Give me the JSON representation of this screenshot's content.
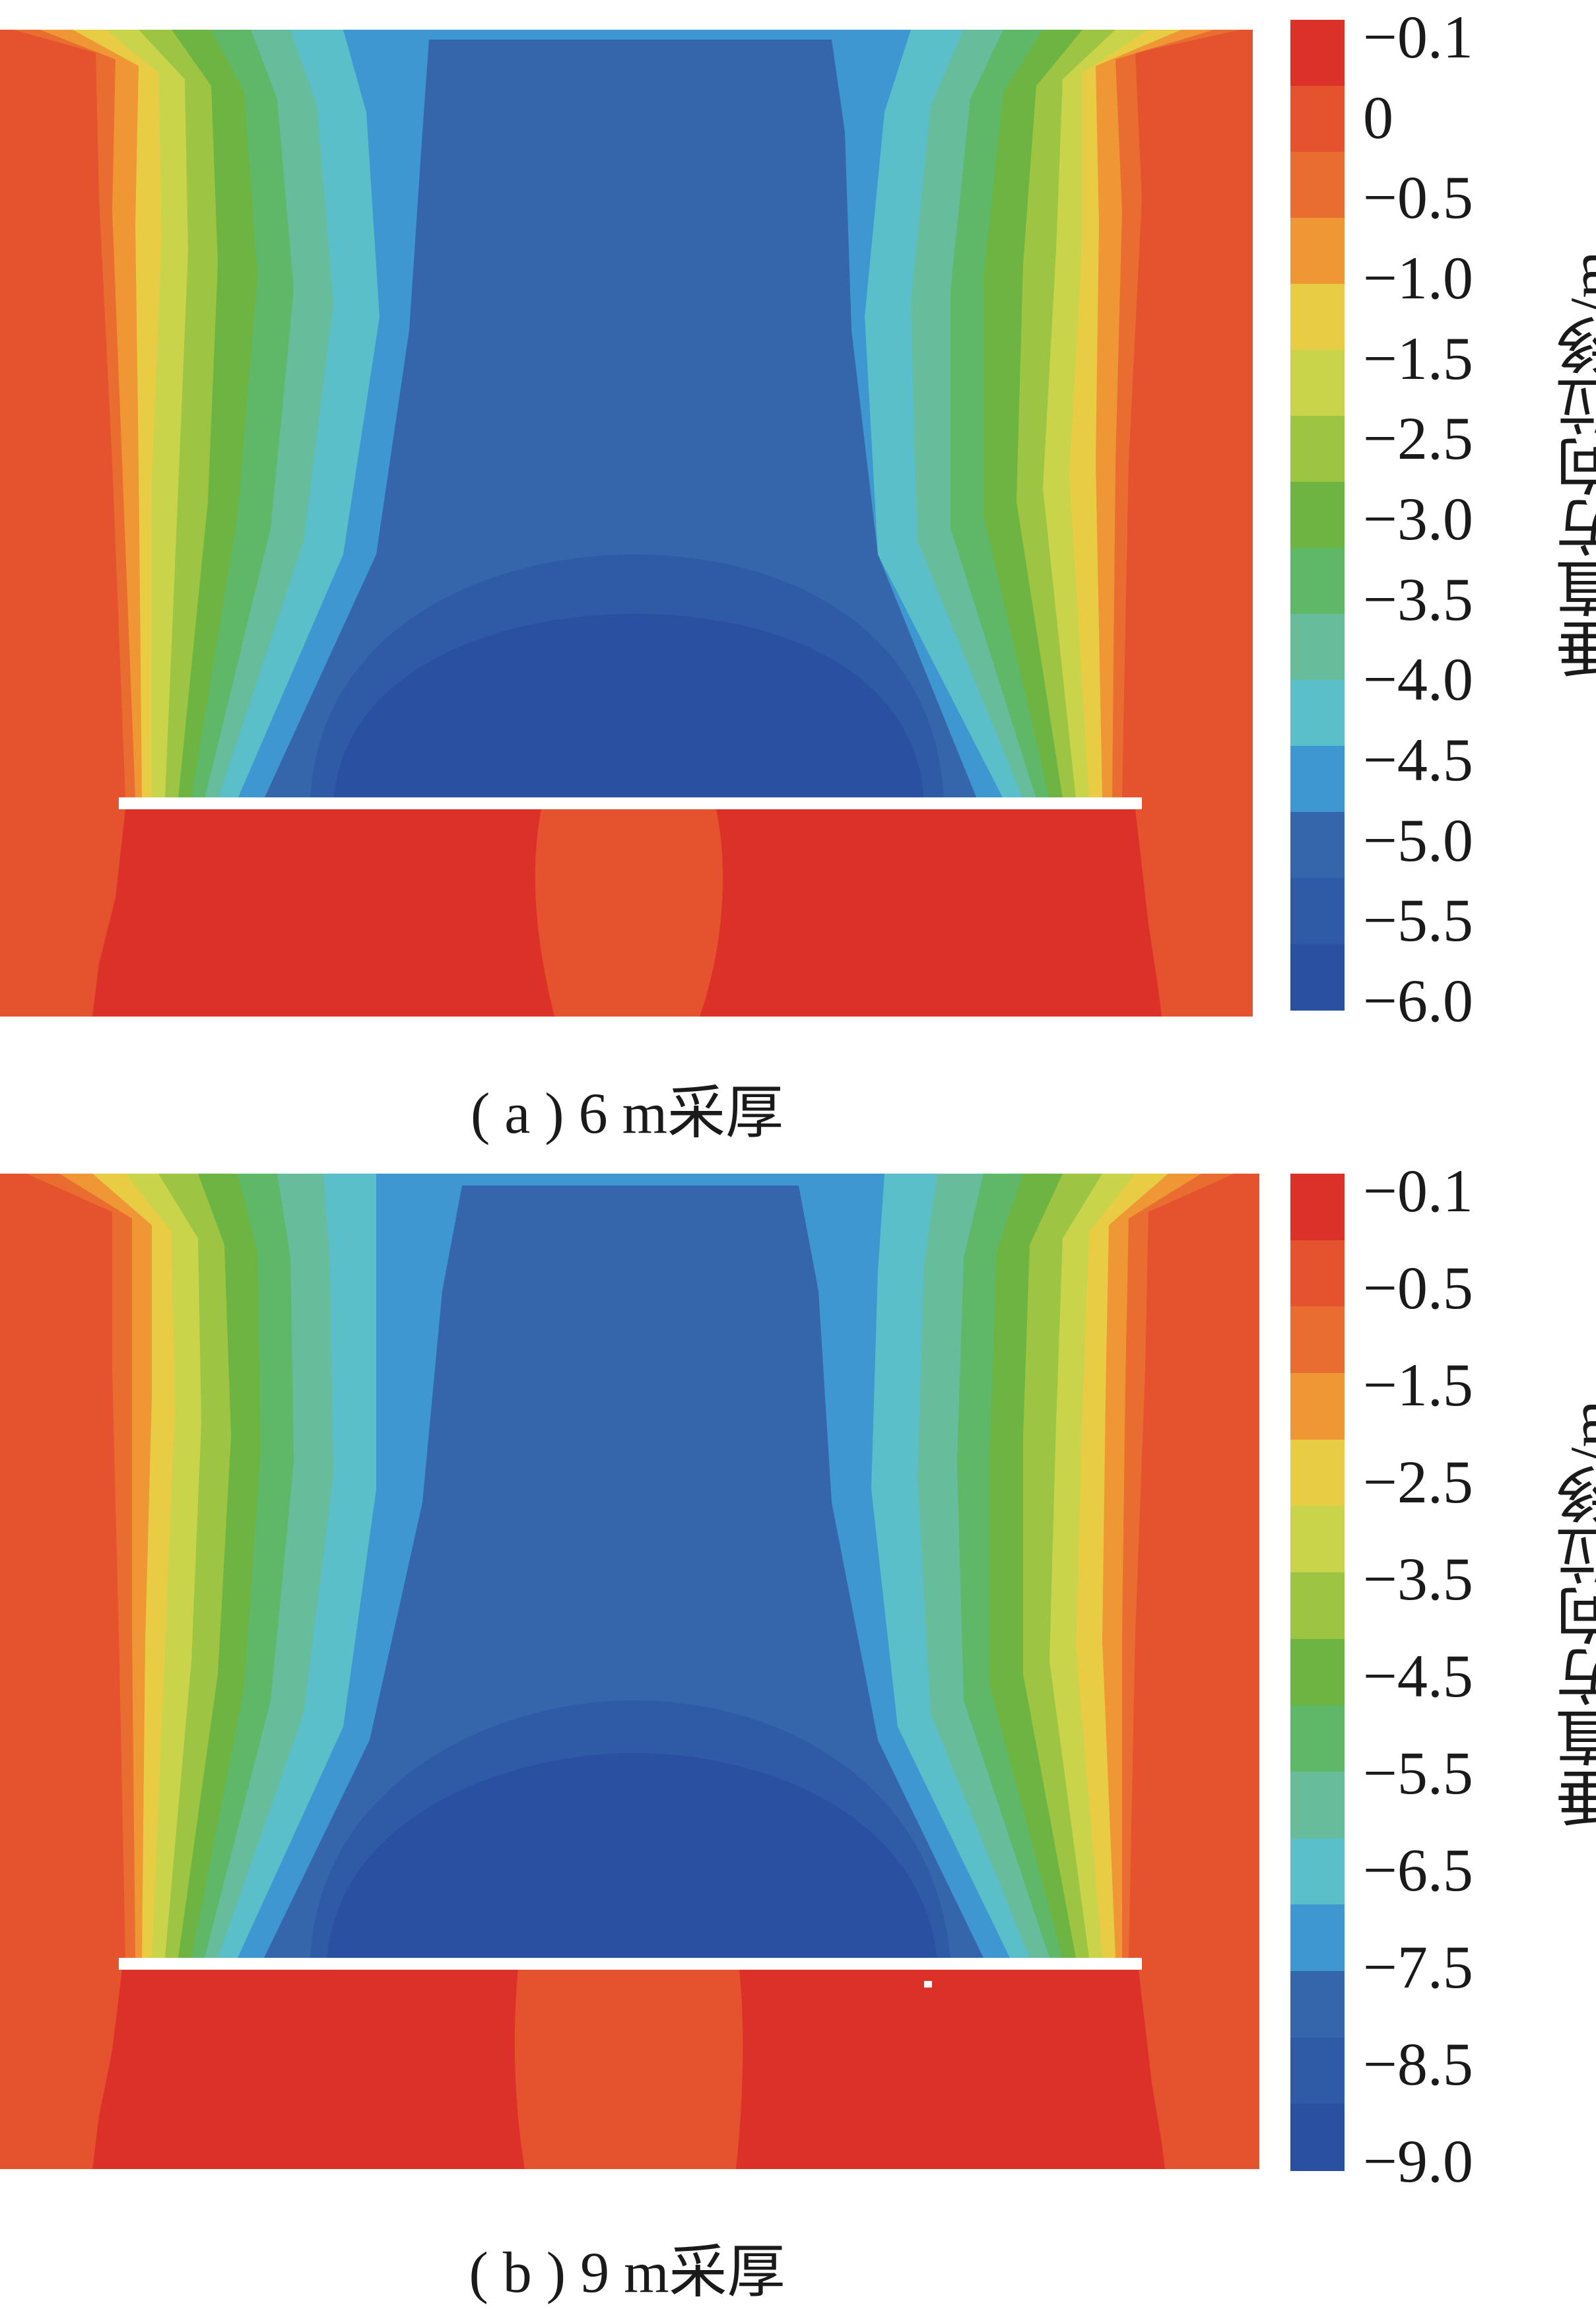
{
  "panels": [
    {
      "id": "a",
      "caption": "( a ) 6 m采厚",
      "colorbar_title": "垂直方向位移/m",
      "colorbar_labels": [
        "−0.1",
        "0",
        "−0.5",
        "−1.0",
        "−1.5",
        "−2.5",
        "−3.0",
        "−3.5",
        "−4.0",
        "−4.5",
        "−5.0",
        "−5.5",
        "−6.0"
      ],
      "colorbar_colors": [
        "#dc3128",
        "#e4522e",
        "#e96c31",
        "#ef9635",
        "#e8cc44",
        "#c9d44a",
        "#9dc443",
        "#6db443",
        "#5fb768",
        "#67bc9c",
        "#5abfc9",
        "#3e97d0",
        "#3565ab",
        "#2f5aa6",
        "#2a50a1"
      ]
    },
    {
      "id": "b",
      "caption": "( b ) 9 m采厚",
      "colorbar_title": "垂直方向位移/m",
      "colorbar_labels": [
        "−0.1",
        "−0.5",
        "−1.5",
        "−2.5",
        "−3.5",
        "−4.5",
        "−5.5",
        "−6.5",
        "−7.5",
        "−8.5",
        "−9.0"
      ],
      "colorbar_colors": [
        "#dc3128",
        "#e4522e",
        "#e96c31",
        "#ef9635",
        "#e8cc44",
        "#c9d44a",
        "#9dc443",
        "#6db443",
        "#5fb768",
        "#67bc9c",
        "#5abfc9",
        "#3e97d0",
        "#3565ab",
        "#2f5aa6",
        "#2a50a1"
      ]
    }
  ]
}
